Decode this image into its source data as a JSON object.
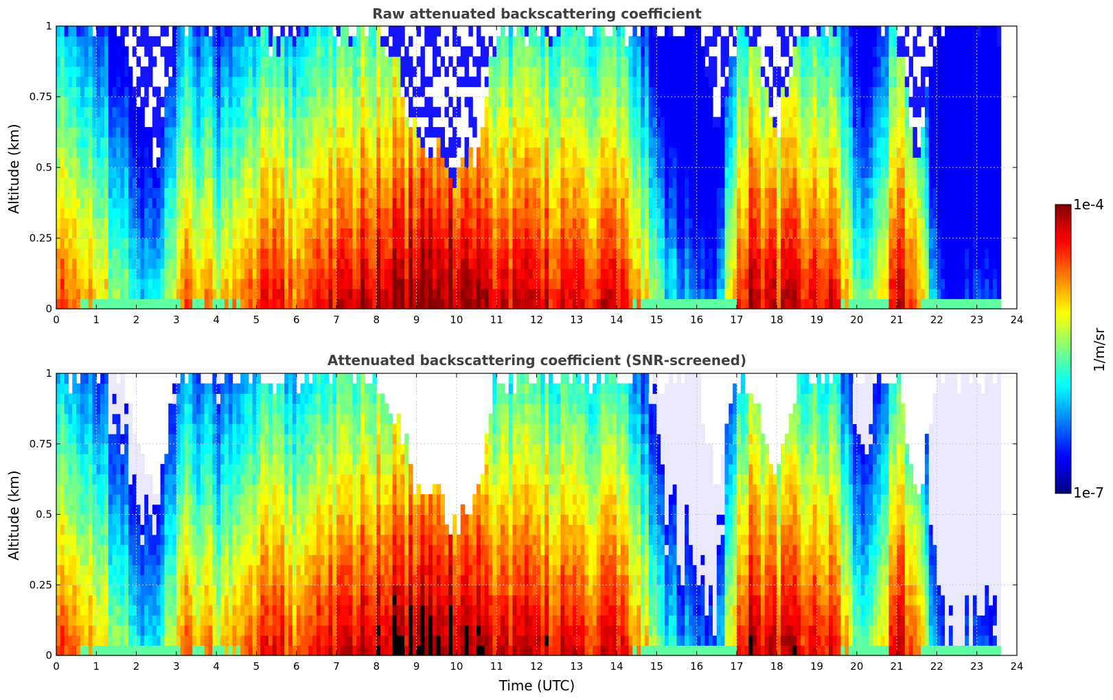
{
  "chart_data": [
    {
      "type": "heatmap",
      "title": "Raw attenuated backscattering coefficient",
      "xlabel": "",
      "ylabel": "Altitude (km)",
      "xlim": [
        0,
        24
      ],
      "ylim": [
        0,
        1
      ],
      "xticks": [
        "0",
        "1",
        "2",
        "3",
        "4",
        "5",
        "6",
        "7",
        "8",
        "9",
        "10",
        "11",
        "12",
        "13",
        "14",
        "15",
        "16",
        "17",
        "18",
        "19",
        "20",
        "21",
        "22",
        "23",
        "24"
      ],
      "yticks": [
        "0",
        "0.25",
        "0.5",
        "0.75",
        "1"
      ],
      "grid": true,
      "data_end_time": 23.6,
      "log10_value_scale": [
        -7,
        -4
      ],
      "intensity_profile": {
        "time_utc": [
          0,
          0.5,
          1,
          1.5,
          2,
          2.5,
          3,
          3.3,
          3.5,
          4,
          4.5,
          5,
          5.5,
          6,
          6.5,
          7,
          7.5,
          8,
          8.5,
          9,
          9.5,
          10,
          10.5,
          11,
          11.5,
          12,
          12.5,
          13,
          13.5,
          14,
          14.5,
          15,
          15.5,
          16,
          16.5,
          17,
          17.5,
          18,
          18.5,
          19,
          19.5,
          20,
          20.5,
          21,
          21.5,
          22,
          22.5,
          23,
          23.5
        ],
        "near_surface_log10": [
          -4.6,
          -4.7,
          -4.8,
          -5.4,
          -5.7,
          -6.0,
          -5.0,
          -4.3,
          -4.8,
          -5.0,
          -4.9,
          -4.5,
          -4.5,
          -4.5,
          -4.4,
          -4.2,
          -4.2,
          -4.1,
          -4.1,
          -4.0,
          -4.0,
          -4.0,
          -4.0,
          -4.2,
          -4.3,
          -4.2,
          -4.3,
          -4.3,
          -4.4,
          -4.4,
          -4.6,
          -5.6,
          -6.0,
          -6.3,
          -6.3,
          -4.4,
          -4.1,
          -4.4,
          -4.3,
          -4.4,
          -4.4,
          -5.5,
          -5.3,
          -4.2,
          -4.6,
          -6.3,
          -6.5,
          -6.5,
          -6.5
        ],
        "profile_top_km": [
          1,
          1,
          1,
          1,
          0.78,
          0.5,
          1,
          1,
          1,
          1,
          1,
          1,
          0.9,
          1,
          1,
          1,
          1,
          1,
          0.85,
          0.6,
          0.55,
          0.45,
          0.55,
          1,
          1,
          1,
          1,
          1,
          1,
          1,
          1,
          1,
          1,
          1,
          0.6,
          1,
          0.9,
          0.6,
          1,
          1,
          1,
          1,
          1,
          1,
          0.5,
          1,
          1,
          1,
          1
        ]
      }
    },
    {
      "type": "heatmap",
      "title": "Attenuated backscattering coefficient (SNR-screened)",
      "xlabel": "Time (UTC)",
      "ylabel": "Altitude (km)",
      "xlim": [
        0,
        24
      ],
      "ylim": [
        0,
        1
      ],
      "xticks": [
        "0",
        "1",
        "2",
        "3",
        "4",
        "5",
        "6",
        "7",
        "8",
        "9",
        "10",
        "11",
        "12",
        "13",
        "14",
        "15",
        "16",
        "17",
        "18",
        "19",
        "20",
        "21",
        "22",
        "23",
        "24"
      ],
      "yticks": [
        "0",
        "0.25",
        "0.5",
        "0.75",
        "1"
      ],
      "grid": true,
      "data_end_time": 23.6,
      "log10_value_scale": [
        -7,
        -4
      ]
    }
  ],
  "colorbar": {
    "label": "1/m/sr",
    "min_label": "1e-7",
    "max_label": "1e-4",
    "colormap": "jet",
    "stops": [
      "#00007f",
      "#0000ff",
      "#007fff",
      "#00ffff",
      "#7fff7f",
      "#ffff00",
      "#ff7f00",
      "#ff0000",
      "#7f0000"
    ],
    "low_color": "#e9e9fb",
    "saturated_color": "#000000"
  }
}
